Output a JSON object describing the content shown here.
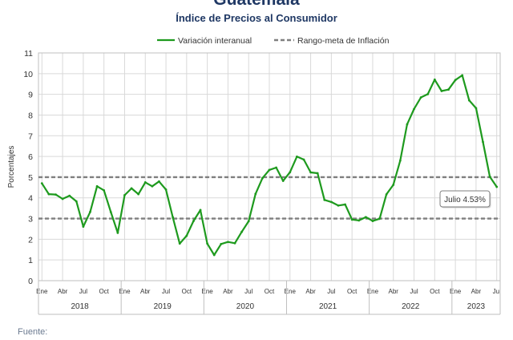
{
  "title": "Guatemala",
  "subtitle": "Índice de Precios al Consumidor",
  "source": "Fuente:",
  "colors": {
    "series": "#1e9a1e",
    "target": "#7f7f7f",
    "title": "#1f3864"
  },
  "chart_data": {
    "type": "line",
    "ylabel": "Porcentajes",
    "ylim": [
      0,
      11
    ],
    "yticks": [
      0,
      1,
      2,
      3,
      4,
      5,
      6,
      7,
      8,
      9,
      10,
      11
    ],
    "grid": true,
    "legend_position": "top",
    "month_tick_labels": [
      "Ene",
      "Abr",
      "Jul",
      "Oct"
    ],
    "years": [
      "2018",
      "2019",
      "2020",
      "2021",
      "2022",
      "2023"
    ],
    "x_start": "2018-01",
    "x_end": "2023-07",
    "series": [
      {
        "name": "Variación interanual",
        "values": [
          4.7,
          4.18,
          4.16,
          3.95,
          4.1,
          3.83,
          2.61,
          3.32,
          4.56,
          4.36,
          3.31,
          2.31,
          4.13,
          4.46,
          4.18,
          4.75,
          4.56,
          4.79,
          4.4,
          3.06,
          1.79,
          2.17,
          2.88,
          3.41,
          1.79,
          1.24,
          1.77,
          1.87,
          1.81,
          2.36,
          2.87,
          4.19,
          4.95,
          5.35,
          5.46,
          4.82,
          5.24,
          5.99,
          5.85,
          5.23,
          5.19,
          3.9,
          3.8,
          3.63,
          3.68,
          2.95,
          2.91,
          3.07,
          2.88,
          2.99,
          4.17,
          4.63,
          5.8,
          7.55,
          8.29,
          8.85,
          9.01,
          9.71,
          9.16,
          9.23,
          9.69,
          9.92,
          8.71,
          8.33,
          6.7,
          5.02,
          4.53
        ]
      },
      {
        "name": "Rango-meta de Inflación",
        "values": [
          3,
          5
        ],
        "style": "dashed"
      }
    ],
    "annotations": [
      {
        "text": "Julio 4.53%",
        "x": "2023-07",
        "y": 4.53
      }
    ]
  }
}
